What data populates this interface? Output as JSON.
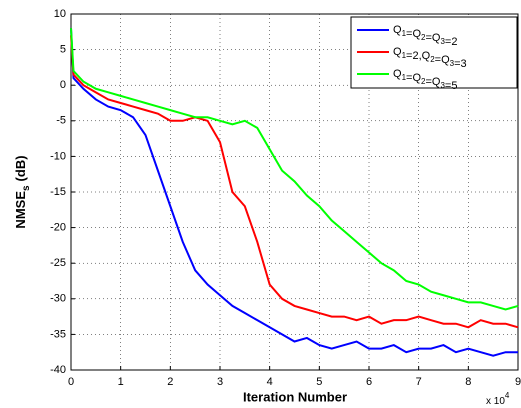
{
  "chart_data": {
    "type": "line",
    "x_label": "Iteration Number",
    "y_label": "NMSE",
    "y_label_sub": "s",
    "y_label_suffix": "(dB)",
    "x_multiplier": "x 10",
    "x_multiplier_exp": "4",
    "x": [
      0,
      0.05,
      0.25,
      0.5,
      0.75,
      1,
      1.25,
      1.5,
      1.75,
      2,
      2.25,
      2.5,
      2.75,
      3,
      3.25,
      3.5,
      3.75,
      4,
      4.25,
      4.5,
      4.75,
      5,
      5.25,
      5.5,
      5.75,
      6,
      6.25,
      6.5,
      6.75,
      7,
      7.25,
      7.5,
      7.75,
      8,
      8.25,
      8.5,
      8.75,
      9
    ],
    "series": [
      {
        "name": "Q1=Q2=Q3=2",
        "color": "#0000ff",
        "values": [
          8,
          1,
          -0.5,
          -2,
          -3,
          -3.5,
          -4.5,
          -7,
          -12,
          -17,
          -22,
          -26,
          -28,
          -29.5,
          -31,
          -32,
          -33,
          -34,
          -35,
          -36,
          -35.5,
          -36.5,
          -37,
          -36.5,
          -36,
          -37,
          -37,
          -36.5,
          -37.5,
          -37,
          -37,
          -36.5,
          -37.5,
          -37,
          -37.5,
          -38,
          -37.5,
          -37.5
        ]
      },
      {
        "name": "Q1=2,Q2=Q3=3",
        "color": "#ff0000",
        "values": [
          7,
          1.5,
          0,
          -1,
          -2,
          -2.5,
          -3,
          -3.5,
          -4,
          -5,
          -5,
          -4.5,
          -5,
          -8,
          -15,
          -17,
          -22,
          -28,
          -30,
          -31,
          -31.5,
          -32,
          -32.5,
          -32.5,
          -33,
          -32.5,
          -33.5,
          -33,
          -33,
          -32.5,
          -33,
          -33.5,
          -33.5,
          -34,
          -33,
          -33.5,
          -33.5,
          -34
        ]
      },
      {
        "name": "Q1=Q2=Q3=5",
        "color": "#00ff00",
        "values": [
          8,
          2,
          0.5,
          -0.5,
          -1,
          -1.5,
          -2,
          -2.5,
          -3,
          -3.5,
          -4,
          -4.5,
          -4.5,
          -5,
          -5.5,
          -5,
          -6,
          -9,
          -12,
          -13.5,
          -15.5,
          -17,
          -19,
          -20.5,
          -22,
          -23.5,
          -25,
          -26,
          -27.5,
          -28,
          -29,
          -29.5,
          -30,
          -30.5,
          -30.5,
          -31,
          -31.5,
          -31
        ]
      }
    ],
    "xlim": [
      0,
      9
    ],
    "xticks": [
      0,
      1,
      2,
      3,
      4,
      5,
      6,
      7,
      8,
      9
    ],
    "ylim": [
      -40,
      10
    ],
    "yticks": [
      -40,
      -35,
      -30,
      -25,
      -20,
      -15,
      -10,
      -5,
      0,
      5,
      10
    ],
    "grid": true,
    "legend": "top-right"
  }
}
